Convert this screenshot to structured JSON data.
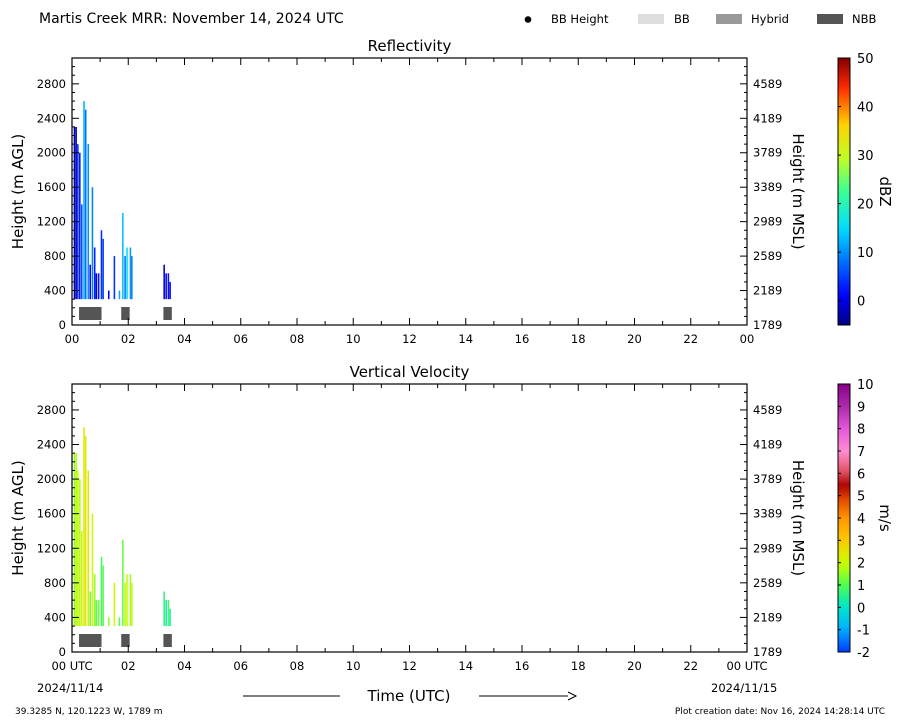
{
  "header": {
    "title": "Martis Creek MRR:  November 14, 2024 UTC",
    "legend": [
      {
        "label": "BB Height",
        "kind": "dot",
        "color": "#000000"
      },
      {
        "label": "BB",
        "kind": "rect",
        "color": "#dddddd"
      },
      {
        "label": "Hybrid",
        "kind": "rect",
        "color": "#999999"
      },
      {
        "label": "NBB",
        "kind": "rect",
        "color": "#555555"
      }
    ]
  },
  "footer": {
    "location": "39.3285 N, 120.1223 W, 1789 m",
    "creation": "Plot creation date: Nov 16, 2024 14:28:14 UTC",
    "xlabel": "Time (UTC)",
    "start_date": "2024/11/14",
    "end_date": "2024/11/15"
  },
  "chart_data": [
    {
      "type": "heatmap",
      "title": "Reflectivity",
      "ylabel": "Height (m AGL)",
      "y2label": "Height (m MSL)",
      "xlim": [
        0,
        24
      ],
      "ylim": [
        0,
        3100
      ],
      "x_ticks": [
        "00",
        "02",
        "04",
        "06",
        "08",
        "10",
        "12",
        "14",
        "16",
        "18",
        "20",
        "22",
        "00"
      ],
      "y_ticks": [
        0,
        400,
        800,
        1200,
        1600,
        2000,
        2400,
        2800
      ],
      "y2_ticks": [
        1789,
        2189,
        2589,
        2989,
        3389,
        3789,
        4189,
        4589
      ],
      "colorbar": {
        "label": "dBZ",
        "min": -5,
        "max": 50,
        "ticks": [
          0,
          10,
          20,
          30,
          40,
          50
        ]
      },
      "bars": [
        {
          "t": 0.06,
          "top": 2300,
          "v": -3
        },
        {
          "t": 0.12,
          "top": 2300,
          "v": -2
        },
        {
          "t": 0.18,
          "top": 2100,
          "v": 4
        },
        {
          "t": 0.25,
          "top": 2000,
          "v": 2
        },
        {
          "t": 0.32,
          "top": 1400,
          "v": 6
        },
        {
          "t": 0.4,
          "top": 2600,
          "v": 12
        },
        {
          "t": 0.46,
          "top": 2500,
          "v": 8
        },
        {
          "t": 0.55,
          "top": 2100,
          "v": 10
        },
        {
          "t": 0.62,
          "top": 700,
          "v": 1
        },
        {
          "t": 0.7,
          "top": 1600,
          "v": 9
        },
        {
          "t": 0.78,
          "top": 900,
          "v": 3
        },
        {
          "t": 0.84,
          "top": 600,
          "v": -1
        },
        {
          "t": 0.92,
          "top": 600,
          "v": 2
        },
        {
          "t": 1.02,
          "top": 1100,
          "v": 4
        },
        {
          "t": 1.08,
          "top": 1000,
          "v": 5
        },
        {
          "t": 1.28,
          "top": 400,
          "v": 1
        },
        {
          "t": 1.48,
          "top": 800,
          "v": 4
        },
        {
          "t": 1.66,
          "top": 400,
          "v": 12
        },
        {
          "t": 1.78,
          "top": 1300,
          "v": 13
        },
        {
          "t": 1.86,
          "top": 800,
          "v": 8
        },
        {
          "t": 1.93,
          "top": 900,
          "v": 15
        },
        {
          "t": 2.05,
          "top": 900,
          "v": 11
        },
        {
          "t": 2.1,
          "top": 800,
          "v": 9
        },
        {
          "t": 3.25,
          "top": 700,
          "v": -2
        },
        {
          "t": 3.32,
          "top": 600,
          "v": 0
        },
        {
          "t": 3.4,
          "top": 600,
          "v": 2
        },
        {
          "t": 3.46,
          "top": 500,
          "v": -1
        }
      ],
      "bright_band": [
        {
          "start": 0.25,
          "end": 1.05,
          "type": "NBB"
        },
        {
          "start": 1.75,
          "end": 2.05,
          "type": "NBB"
        },
        {
          "start": 3.25,
          "end": 3.55,
          "type": "NBB"
        }
      ]
    },
    {
      "type": "heatmap",
      "title": "Vertical Velocity",
      "ylabel": "Height (m AGL)",
      "y2label": "Height (m MSL)",
      "xlim": [
        0,
        24
      ],
      "ylim": [
        0,
        3100
      ],
      "x_ticks": [
        "00 UTC",
        "02",
        "04",
        "06",
        "08",
        "10",
        "12",
        "14",
        "16",
        "18",
        "20",
        "22",
        "00 UTC"
      ],
      "y_ticks": [
        0,
        400,
        800,
        1200,
        1600,
        2000,
        2400,
        2800
      ],
      "y2_ticks": [
        1789,
        2189,
        2589,
        2989,
        3389,
        3789,
        4189,
        4589
      ],
      "colorbar": {
        "label": "m/s",
        "min": -2,
        "max": 10,
        "ticks": [
          -2,
          -1,
          0,
          1,
          2,
          3,
          4,
          5,
          6,
          7,
          8,
          9,
          10
        ]
      },
      "bars": [
        {
          "t": 0.06,
          "top": 2300,
          "v": 1.5
        },
        {
          "t": 0.12,
          "top": 2300,
          "v": 1.8
        },
        {
          "t": 0.18,
          "top": 2100,
          "v": 2.0
        },
        {
          "t": 0.25,
          "top": 2000,
          "v": 1.7
        },
        {
          "t": 0.32,
          "top": 1400,
          "v": 2.2
        },
        {
          "t": 0.4,
          "top": 2600,
          "v": 2.5
        },
        {
          "t": 0.46,
          "top": 2500,
          "v": 2.3
        },
        {
          "t": 0.55,
          "top": 2100,
          "v": 2.4
        },
        {
          "t": 0.62,
          "top": 700,
          "v": 1.2
        },
        {
          "t": 0.7,
          "top": 1600,
          "v": 2.0
        },
        {
          "t": 0.78,
          "top": 900,
          "v": 1.5
        },
        {
          "t": 0.84,
          "top": 600,
          "v": 1.0
        },
        {
          "t": 0.92,
          "top": 600,
          "v": 1.3
        },
        {
          "t": 1.02,
          "top": 1100,
          "v": 0.8
        },
        {
          "t": 1.08,
          "top": 1000,
          "v": 1.1
        },
        {
          "t": 1.28,
          "top": 400,
          "v": 1.5
        },
        {
          "t": 1.48,
          "top": 800,
          "v": 2.0
        },
        {
          "t": 1.66,
          "top": 400,
          "v": 1.0
        },
        {
          "t": 1.78,
          "top": 1300,
          "v": 1.2
        },
        {
          "t": 1.86,
          "top": 800,
          "v": 1.8
        },
        {
          "t": 1.93,
          "top": 900,
          "v": 2.0
        },
        {
          "t": 2.05,
          "top": 900,
          "v": 1.6
        },
        {
          "t": 2.1,
          "top": 800,
          "v": 1.9
        },
        {
          "t": 3.25,
          "top": 700,
          "v": 0.6
        },
        {
          "t": 3.32,
          "top": 600,
          "v": 0.2
        },
        {
          "t": 3.4,
          "top": 600,
          "v": 0.9
        },
        {
          "t": 3.46,
          "top": 500,
          "v": 0.3
        }
      ],
      "bright_band": [
        {
          "start": 0.25,
          "end": 1.05,
          "type": "NBB"
        },
        {
          "start": 1.75,
          "end": 2.05,
          "type": "NBB"
        },
        {
          "start": 3.25,
          "end": 3.55,
          "type": "NBB"
        }
      ]
    }
  ]
}
